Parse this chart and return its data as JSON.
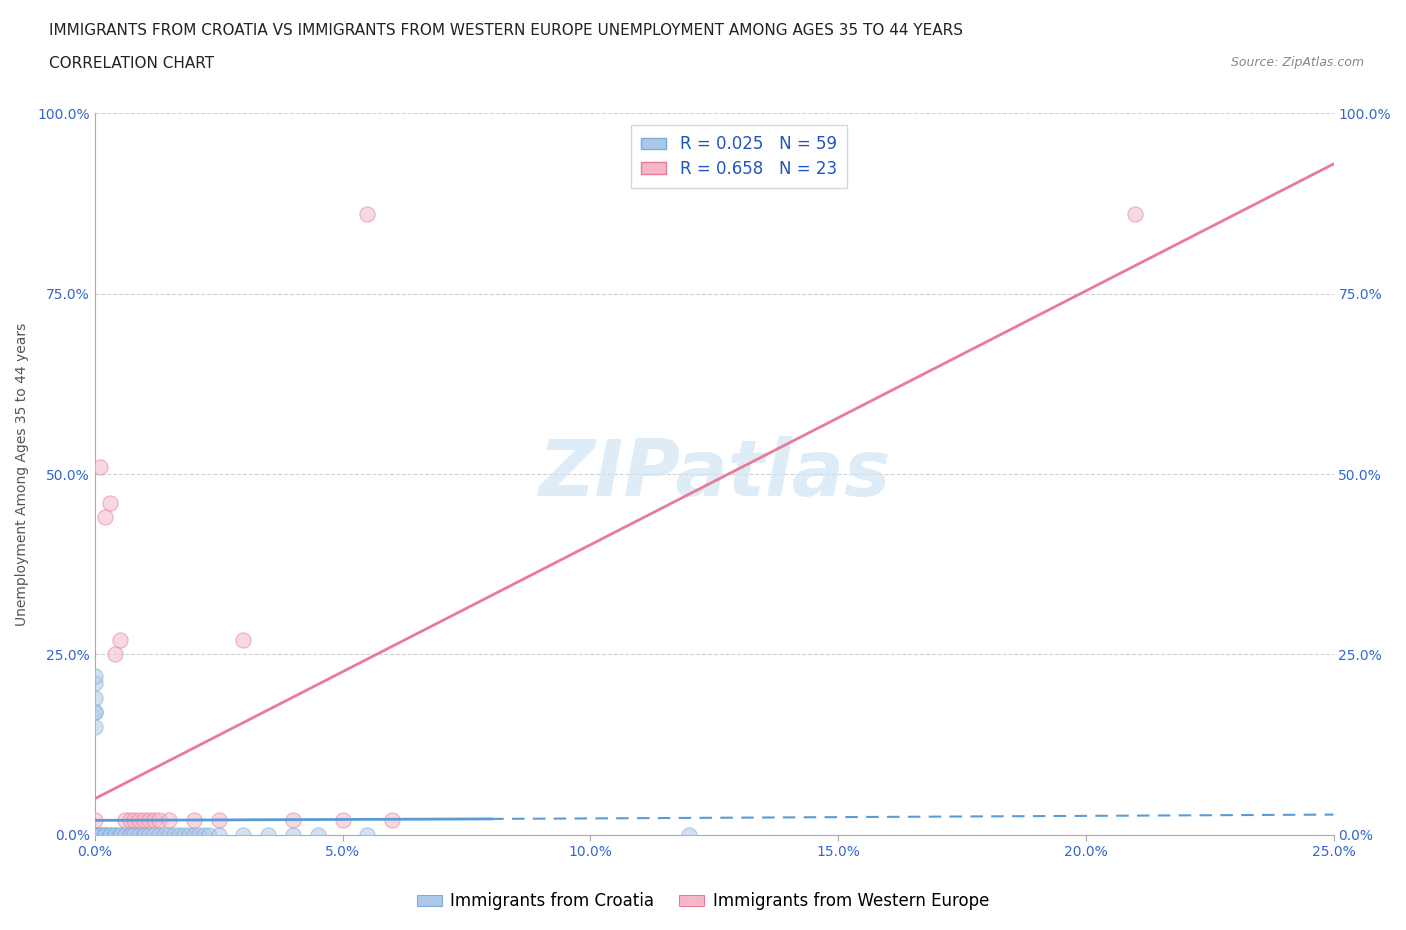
{
  "title_line1": "IMMIGRANTS FROM CROATIA VS IMMIGRANTS FROM WESTERN EUROPE UNEMPLOYMENT AMONG AGES 35 TO 44 YEARS",
  "title_line2": "CORRELATION CHART",
  "source": "Source: ZipAtlas.com",
  "ylabel": "Unemployment Among Ages 35 to 44 years",
  "xlim": [
    0,
    0.25
  ],
  "ylim": [
    0,
    1.0
  ],
  "xticks": [
    0.0,
    0.05,
    0.1,
    0.15,
    0.2,
    0.25
  ],
  "yticks": [
    0.0,
    0.25,
    0.5,
    0.75,
    1.0
  ],
  "xtick_labels": [
    "0.0%",
    "5.0%",
    "10.0%",
    "15.0%",
    "20.0%",
    "25.0%"
  ],
  "ytick_labels": [
    "0.0%",
    "25.0%",
    "50.0%",
    "75.0%",
    "100.0%"
  ],
  "croatia": {
    "name": "Immigrants from Croatia",
    "R": 0.025,
    "N": 59,
    "color": "#adc8e8",
    "edge_color": "#7aadd4",
    "trendline_color": "#5b9bd5",
    "trendline_style": "--",
    "x": [
      0.0,
      0.0,
      0.0,
      0.0,
      0.0,
      0.0,
      0.0,
      0.0,
      0.0,
      0.0,
      0.0,
      0.0,
      0.0,
      0.0,
      0.0,
      0.0,
      0.0,
      0.0,
      0.0,
      0.0,
      0.001,
      0.001,
      0.001,
      0.002,
      0.002,
      0.002,
      0.003,
      0.003,
      0.004,
      0.004,
      0.005,
      0.005,
      0.006,
      0.007,
      0.007,
      0.008,
      0.009,
      0.01,
      0.01,
      0.011,
      0.012,
      0.013,
      0.014,
      0.015,
      0.016,
      0.017,
      0.018,
      0.019,
      0.02,
      0.021,
      0.022,
      0.023,
      0.025,
      0.03,
      0.035,
      0.04,
      0.045,
      0.055,
      0.12
    ],
    "y": [
      0.0,
      0.0,
      0.0,
      0.0,
      0.0,
      0.0,
      0.0,
      0.0,
      0.0,
      0.0,
      0.0,
      0.0,
      0.0,
      0.0,
      0.17,
      0.19,
      0.21,
      0.22,
      0.17,
      0.15,
      0.0,
      0.0,
      0.0,
      0.0,
      0.0,
      0.0,
      0.0,
      0.0,
      0.0,
      0.0,
      0.0,
      0.0,
      0.0,
      0.0,
      0.0,
      0.0,
      0.0,
      0.0,
      0.0,
      0.0,
      0.0,
      0.0,
      0.0,
      0.0,
      0.0,
      0.0,
      0.0,
      0.0,
      0.0,
      0.0,
      0.0,
      0.0,
      0.0,
      0.0,
      0.0,
      0.0,
      0.0,
      0.0,
      0.0
    ],
    "trendline_x": [
      0.0,
      0.08,
      0.25
    ],
    "trendline_y": [
      0.02,
      0.022,
      0.028
    ]
  },
  "western_europe": {
    "name": "Immigrants from Western Europe",
    "R": 0.658,
    "N": 23,
    "color": "#f4b8c8",
    "edge_color": "#e87a9a",
    "trendline_color": "#e87a9a",
    "trendline_style": "-",
    "x": [
      0.0,
      0.001,
      0.002,
      0.003,
      0.004,
      0.005,
      0.006,
      0.007,
      0.008,
      0.009,
      0.01,
      0.011,
      0.012,
      0.013,
      0.015,
      0.02,
      0.025,
      0.03,
      0.04,
      0.05,
      0.055,
      0.06,
      0.21
    ],
    "y": [
      0.02,
      0.51,
      0.44,
      0.46,
      0.25,
      0.27,
      0.02,
      0.02,
      0.02,
      0.02,
      0.02,
      0.02,
      0.02,
      0.02,
      0.02,
      0.02,
      0.02,
      0.27,
      0.02,
      0.02,
      0.86,
      0.02,
      0.86
    ],
    "trendline_x": [
      0.0,
      0.25
    ],
    "trendline_y": [
      0.05,
      0.93
    ]
  },
  "watermark": "ZIPatlas",
  "background_color": "#ffffff",
  "grid_color": "#cccccc",
  "title_fontsize": 11,
  "axis_label_fontsize": 10,
  "tick_fontsize": 10,
  "legend_fontsize": 12,
  "marker_size": 120,
  "marker_alpha": 0.55
}
